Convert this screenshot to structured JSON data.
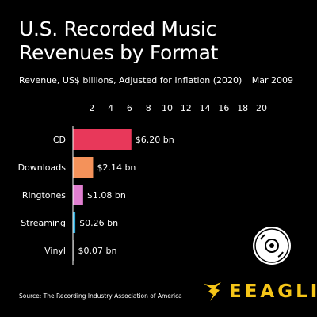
{
  "title": "U.S. Recorded Music Revenues by Format",
  "subtitle": "Revenue, US$ billions, Adjusted for Inflation (2020)",
  "date": "Mar 2009",
  "source": "Source: The Recording Industry Association of America",
  "brand": {
    "name": "EEAGLI",
    "color": "#f5c518"
  },
  "disc_icon": "compact-disc-icon",
  "chart_data": {
    "type": "bar",
    "orientation": "horizontal",
    "categories": [
      "CD",
      "Downloads",
      "Ringtones",
      "Streaming",
      "Vinyl"
    ],
    "values": [
      6.2,
      2.14,
      1.08,
      0.26,
      0.07
    ],
    "value_labels": [
      "$6.20 bn",
      "$2.14 bn",
      "$1.08 bn",
      "$0.26 bn",
      "$0.07 bn"
    ],
    "colors": [
      "#e8385a",
      "#f4925a",
      "#e07fd0",
      "#2aa9d9",
      "#555555"
    ],
    "xlim": [
      0,
      20
    ],
    "xticks": [
      2,
      4,
      6,
      8,
      10,
      12,
      14,
      16,
      18,
      20
    ],
    "xlabel": "",
    "ylabel": "",
    "grid": false,
    "legend": "none"
  }
}
